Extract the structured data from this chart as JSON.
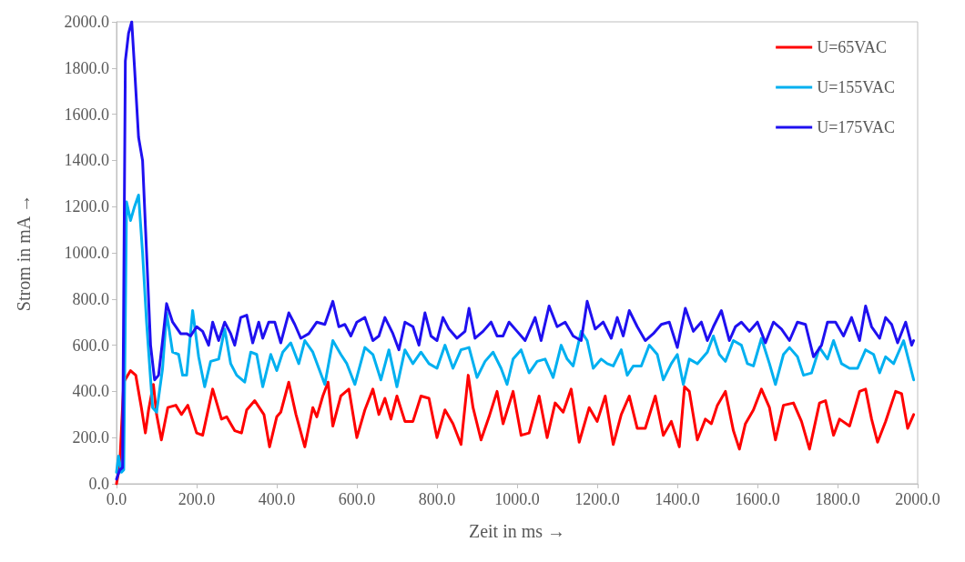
{
  "chart_data": {
    "type": "line",
    "xlabel": "Zeit in ms →",
    "ylabel": "Strom in mA →",
    "xlim": [
      0,
      2000
    ],
    "xticks": [
      {
        "value": 0,
        "label": "0.0"
      },
      {
        "value": 200,
        "label": "200.0"
      },
      {
        "value": 400,
        "label": "400.0"
      },
      {
        "value": 600,
        "label": "600.0"
      },
      {
        "value": 800,
        "label": "800.0"
      },
      {
        "value": 1000,
        "label": "1000.0"
      },
      {
        "value": 1200,
        "label": "1200.0"
      },
      {
        "value": 1400,
        "label": "1400.0"
      },
      {
        "value": 1600,
        "label": "1600.0"
      },
      {
        "value": 1800,
        "label": "1800.0"
      },
      {
        "value": 2000,
        "label": "2000.0"
      }
    ],
    "ylim": [
      0,
      2000
    ],
    "yticks": [
      {
        "value": 0,
        "label": "0.0"
      },
      {
        "value": 200,
        "label": "200.0"
      },
      {
        "value": 400,
        "label": "400.0"
      },
      {
        "value": 600,
        "label": "600.0"
      },
      {
        "value": 800,
        "label": "800.0"
      },
      {
        "value": 1000,
        "label": "1000.0"
      },
      {
        "value": 1200,
        "label": "1200.0"
      },
      {
        "value": 1400,
        "label": "1400.0"
      },
      {
        "value": 1600,
        "label": "1600.0"
      },
      {
        "value": 1800,
        "label": "1800.0"
      },
      {
        "value": 2000,
        "label": "2000.0"
      }
    ],
    "grid": false,
    "legend": "top right",
    "marker": "none",
    "line_style": "solid",
    "series": [
      {
        "name": "U=65VAC",
        "color": "#ff0000",
        "x": [
          0,
          8,
          18,
          35,
          48,
          62,
          72,
          80,
          92,
          100,
          112,
          128,
          148,
          162,
          178,
          200,
          215,
          240,
          262,
          275,
          295,
          312,
          325,
          345,
          368,
          382,
          400,
          410,
          430,
          448,
          470,
          490,
          500,
          515,
          528,
          540,
          560,
          580,
          600,
          620,
          640,
          655,
          670,
          685,
          700,
          720,
          740,
          760,
          780,
          800,
          820,
          840,
          860,
          878,
          890,
          910,
          930,
          950,
          965,
          990,
          1010,
          1030,
          1055,
          1075,
          1095,
          1115,
          1135,
          1155,
          1180,
          1200,
          1220,
          1240,
          1260,
          1280,
          1300,
          1320,
          1345,
          1365,
          1385,
          1405,
          1418,
          1430,
          1450,
          1470,
          1485,
          1500,
          1520,
          1540,
          1555,
          1570,
          1590,
          1610,
          1630,
          1645,
          1665,
          1690,
          1710,
          1730,
          1755,
          1770,
          1790,
          1805,
          1830,
          1855,
          1870,
          1885,
          1900,
          1920,
          1945,
          1960,
          1975,
          1990
        ],
        "values": [
          0,
          80,
          440,
          490,
          470,
          330,
          220,
          320,
          430,
          300,
          190,
          330,
          340,
          300,
          340,
          220,
          210,
          410,
          280,
          290,
          230,
          220,
          320,
          360,
          300,
          160,
          290,
          310,
          440,
          300,
          160,
          330,
          290,
          380,
          440,
          250,
          380,
          410,
          200,
          320,
          410,
          300,
          370,
          280,
          380,
          270,
          270,
          380,
          370,
          200,
          320,
          260,
          170,
          470,
          330,
          190,
          290,
          400,
          260,
          400,
          210,
          220,
          380,
          200,
          350,
          310,
          410,
          180,
          330,
          270,
          380,
          170,
          300,
          380,
          240,
          240,
          380,
          210,
          270,
          160,
          420,
          400,
          190,
          280,
          260,
          340,
          400,
          230,
          150,
          260,
          320,
          410,
          330,
          190,
          340,
          350,
          270,
          150,
          350,
          360,
          210,
          280,
          250,
          400,
          410,
          280,
          180,
          270,
          400,
          390,
          240,
          300
        ]
      },
      {
        "name": "U=155VAC",
        "color": "#00b0f0",
        "x": [
          0,
          5,
          12,
          18,
          25,
          35,
          45,
          55,
          65,
          75,
          90,
          100,
          115,
          125,
          140,
          155,
          165,
          175,
          190,
          205,
          220,
          235,
          255,
          270,
          285,
          300,
          320,
          335,
          350,
          365,
          385,
          400,
          415,
          435,
          455,
          470,
          490,
          505,
          520,
          540,
          560,
          575,
          595,
          620,
          640,
          660,
          680,
          700,
          720,
          740,
          760,
          780,
          800,
          820,
          840,
          860,
          880,
          900,
          920,
          940,
          960,
          975,
          990,
          1010,
          1030,
          1050,
          1070,
          1090,
          1110,
          1125,
          1140,
          1160,
          1175,
          1190,
          1210,
          1225,
          1240,
          1260,
          1275,
          1290,
          1310,
          1330,
          1350,
          1365,
          1385,
          1400,
          1415,
          1430,
          1450,
          1475,
          1490,
          1505,
          1520,
          1540,
          1560,
          1575,
          1590,
          1610,
          1630,
          1645,
          1665,
          1680,
          1700,
          1715,
          1735,
          1755,
          1775,
          1790,
          1810,
          1830,
          1850,
          1870,
          1890,
          1905,
          1920,
          1940,
          1965,
          1990
        ],
        "values": [
          50,
          120,
          50,
          60,
          1220,
          1140,
          1200,
          1250,
          1000,
          700,
          330,
          310,
          500,
          740,
          570,
          560,
          470,
          470,
          750,
          550,
          420,
          530,
          540,
          670,
          520,
          470,
          440,
          570,
          560,
          420,
          560,
          490,
          570,
          610,
          520,
          620,
          570,
          500,
          430,
          620,
          560,
          520,
          430,
          590,
          560,
          450,
          580,
          420,
          580,
          520,
          570,
          520,
          500,
          600,
          500,
          580,
          590,
          460,
          530,
          570,
          500,
          430,
          540,
          580,
          480,
          530,
          540,
          460,
          600,
          540,
          510,
          660,
          620,
          500,
          540,
          520,
          510,
          580,
          470,
          510,
          510,
          600,
          560,
          450,
          520,
          560,
          430,
          540,
          520,
          570,
          640,
          560,
          530,
          620,
          600,
          520,
          510,
          630,
          520,
          430,
          560,
          590,
          550,
          470,
          480,
          590,
          540,
          620,
          520,
          500,
          500,
          580,
          560,
          480,
          550,
          520,
          620,
          450
        ]
      },
      {
        "name": "U=175VAC",
        "color": "#1f10f0",
        "x": [
          0,
          8,
          15,
          22,
          30,
          38,
          45,
          55,
          65,
          75,
          85,
          95,
          105,
          115,
          125,
          140,
          160,
          175,
          185,
          200,
          215,
          230,
          240,
          255,
          270,
          285,
          295,
          310,
          325,
          340,
          355,
          365,
          380,
          395,
          410,
          430,
          445,
          460,
          480,
          500,
          520,
          540,
          555,
          570,
          585,
          600,
          620,
          640,
          655,
          670,
          690,
          705,
          720,
          740,
          755,
          770,
          785,
          800,
          815,
          830,
          850,
          870,
          880,
          895,
          915,
          935,
          950,
          965,
          980,
          1000,
          1020,
          1045,
          1060,
          1080,
          1100,
          1120,
          1140,
          1160,
          1175,
          1195,
          1215,
          1235,
          1250,
          1265,
          1280,
          1300,
          1320,
          1340,
          1360,
          1380,
          1400,
          1420,
          1440,
          1460,
          1475,
          1490,
          1510,
          1530,
          1545,
          1560,
          1580,
          1600,
          1620,
          1640,
          1660,
          1680,
          1700,
          1720,
          1740,
          1760,
          1775,
          1795,
          1815,
          1835,
          1855,
          1870,
          1885,
          1905,
          1920,
          1935,
          1950,
          1970,
          1985,
          1990
        ],
        "values": [
          20,
          60,
          70,
          1830,
          1950,
          2000,
          1800,
          1500,
          1400,
          1000,
          600,
          450,
          470,
          620,
          780,
          700,
          650,
          650,
          640,
          680,
          660,
          600,
          700,
          620,
          700,
          650,
          600,
          720,
          730,
          610,
          700,
          630,
          700,
          700,
          610,
          740,
          690,
          630,
          650,
          700,
          690,
          790,
          680,
          690,
          640,
          700,
          720,
          620,
          640,
          720,
          650,
          580,
          700,
          680,
          600,
          740,
          640,
          620,
          720,
          670,
          630,
          660,
          760,
          630,
          660,
          700,
          640,
          640,
          700,
          660,
          620,
          720,
          620,
          770,
          680,
          700,
          640,
          620,
          790,
          670,
          700,
          630,
          720,
          640,
          750,
          680,
          620,
          650,
          690,
          700,
          590,
          760,
          660,
          700,
          620,
          680,
          750,
          620,
          680,
          700,
          660,
          700,
          610,
          700,
          670,
          620,
          700,
          690,
          550,
          600,
          700,
          700,
          640,
          720,
          620,
          770,
          680,
          630,
          720,
          690,
          610,
          700,
          600,
          620
        ]
      }
    ]
  }
}
